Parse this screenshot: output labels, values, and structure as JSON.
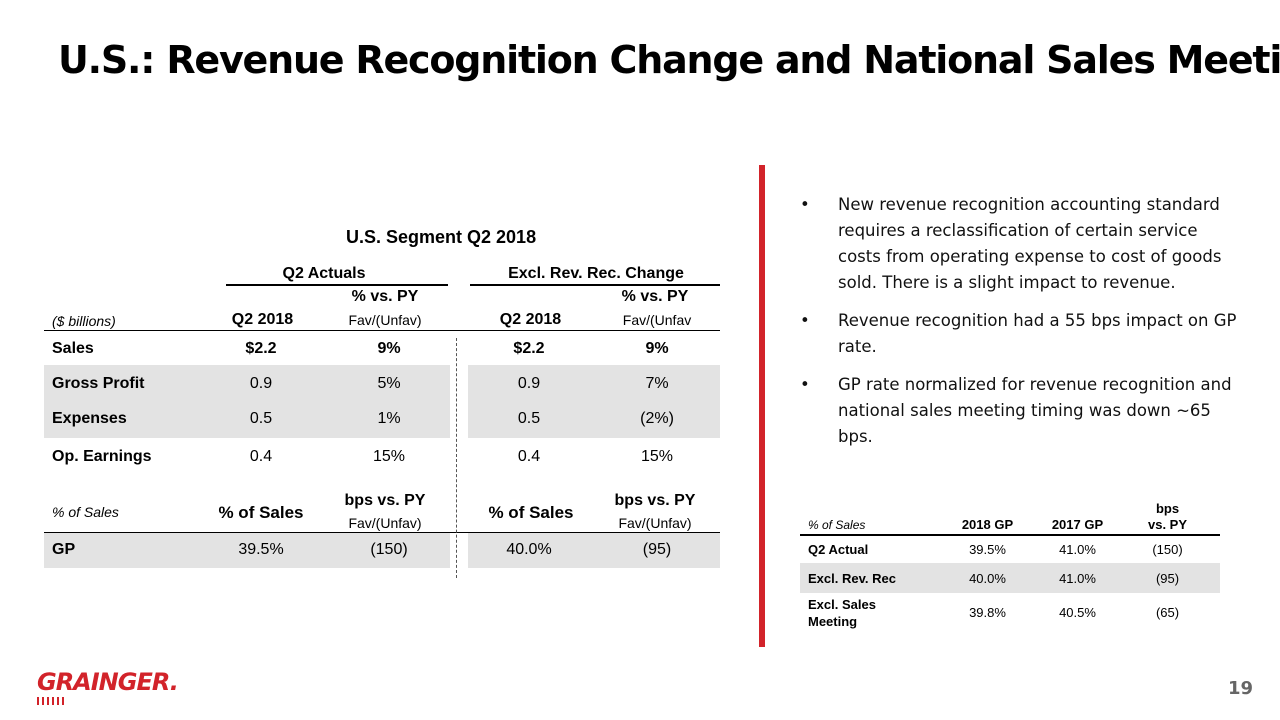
{
  "title": "U.S.: Revenue Recognition Change and National Sales Meeting",
  "segment_title": "U.S. Segment Q2 2018",
  "main_table": {
    "group_headers": [
      "Q2 Actuals",
      "Excl. Rev. Rec. Change"
    ],
    "units_label": "($ billions)",
    "col_headers": {
      "q2_2018": "Q2 2018",
      "pct_vs_py": "% vs. PY",
      "fav_unfav": "Fav/(Unfav)",
      "fav_unfav_b": "Fav/(Unfav"
    },
    "rows": [
      {
        "label": "Sales",
        "a": "$2.2",
        "b": "9%",
        "c": "$2.2",
        "d": "9%"
      },
      {
        "label": "Gross Profit",
        "a": "0.9",
        "b": "5%",
        "c": "0.9",
        "d": "7%"
      },
      {
        "label": "Expenses",
        "a": "0.5",
        "b": "1%",
        "c": "0.5",
        "d": "(2%)"
      },
      {
        "label": "Op. Earnings",
        "a": "0.4",
        "b": "15%",
        "c": "0.4",
        "d": "15%"
      }
    ],
    "pct_section": {
      "row_label": "% of Sales",
      "pct_of_sales": "% of Sales",
      "bps_vs_py": "bps vs. PY",
      "fav_unfav": "Fav/(Unfav)"
    },
    "gp_row": {
      "label": "GP",
      "a": "39.5%",
      "b": "(150)",
      "c": "40.0%",
      "d": "(95)"
    }
  },
  "bullets": [
    "New revenue recognition accounting standard requires a reclassification of certain service costs from operating expense to cost of goods sold. There is a slight impact to revenue.",
    "Revenue recognition had a 55 bps impact on GP rate.",
    "GP rate normalized for revenue recognition and national sales meeting timing was down ~65 bps."
  ],
  "bullet_glyph": "•",
  "small_table": {
    "headers": [
      "% of Sales",
      "2018 GP",
      "2017 GP",
      "bps",
      "vs. PY"
    ],
    "rows": [
      {
        "label": "Q2 Actual",
        "gp2018": "39.5%",
        "gp2017": "41.0%",
        "bps": "(150)"
      },
      {
        "label": "Excl. Rev. Rec",
        "gp2018": "40.0%",
        "gp2017": "41.0%",
        "bps": "(95)"
      },
      {
        "label_line1": "Excl. Sales",
        "label_line2": "Meeting",
        "gp2018": "39.8%",
        "gp2017": "40.5%",
        "bps": "(65)"
      }
    ]
  },
  "logo_text": "GRAINGER.",
  "page_number": "19",
  "colors": {
    "accent": "#d2232a",
    "shade": "#e3e3e3"
  }
}
